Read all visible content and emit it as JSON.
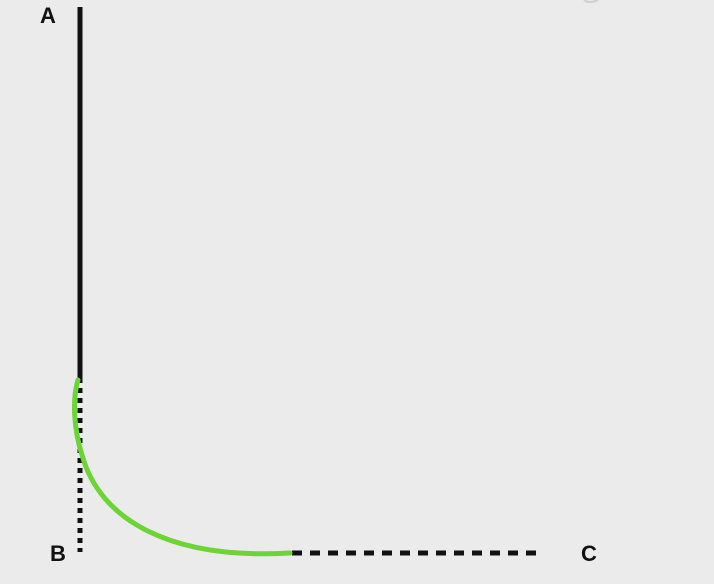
{
  "labels": {
    "a": "A",
    "b": "B",
    "c": "C"
  },
  "colors": {
    "background": "#ebebeb",
    "line": "#111111",
    "curve": "#6dd435"
  }
}
